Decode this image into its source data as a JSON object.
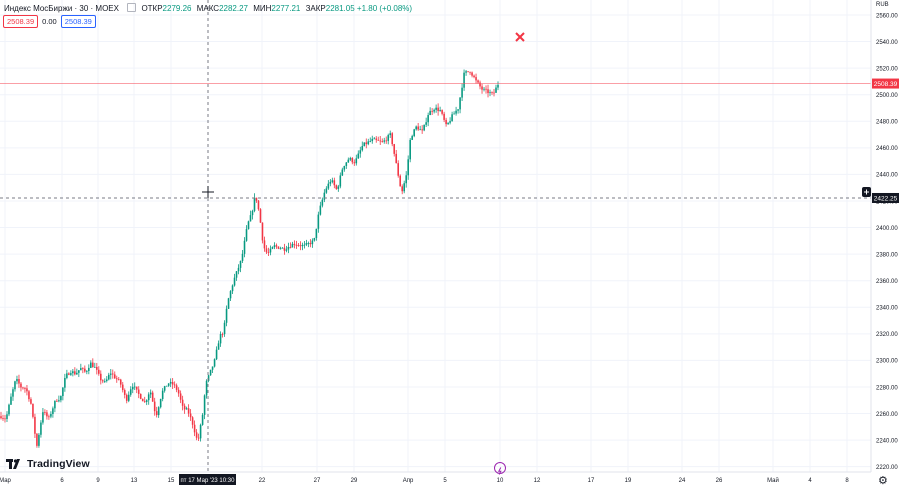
{
  "chart_data": {
    "type": "candlestick",
    "symbol_title": "Индекс МосБиржи · 30 · MOEX",
    "ohlc": {
      "open_label": "ОТКР",
      "open": "2279.26",
      "high_label": "МАКС",
      "high": "2282.27",
      "low_label": "МИН",
      "low": "2277.21",
      "close_label": "ЗАКР",
      "close": "2281.05",
      "change": "+1.80 (+0.08%)"
    },
    "sell_price": "2508.39",
    "spread": "0.00",
    "buy_price": "2508.39",
    "currency": "RUB",
    "y_axis": {
      "ticks": [
        "2560.00",
        "2540.00",
        "2520.00",
        "2500.00",
        "2480.00",
        "2460.00",
        "2440.00",
        "2420.00",
        "2400.00",
        "2380.00",
        "2360.00",
        "2340.00",
        "2320.00",
        "2300.00",
        "2280.00",
        "2260.00",
        "2240.00",
        "2220.00"
      ],
      "ylim": [
        2216,
        2563
      ]
    },
    "x_axis": {
      "ticks": [
        "Мар",
        "6",
        "9",
        "13",
        "15",
        "22",
        "27",
        "29",
        "Апр",
        "5",
        "10",
        "12",
        "17",
        "19",
        "24",
        "26",
        "Май",
        "4",
        "8"
      ]
    },
    "last_price_label": "2508.39",
    "crosshair": {
      "price_label": "2422.25",
      "time_label": "пт 17 Мар '23 10:30"
    },
    "path": [
      [
        0.0,
        2258
      ],
      [
        0.5,
        2256
      ],
      [
        1.0,
        2272
      ],
      [
        1.5,
        2286
      ],
      [
        2.0,
        2280
      ],
      [
        2.5,
        2279
      ],
      [
        3.0,
        2268
      ],
      [
        3.6,
        2235
      ],
      [
        4.2,
        2262
      ],
      [
        4.8,
        2256
      ],
      [
        5.5,
        2270
      ],
      [
        6.0,
        2272
      ],
      [
        6.5,
        2288
      ],
      [
        7.0,
        2292
      ],
      [
        7.5,
        2290
      ],
      [
        8.0,
        2294
      ],
      [
        8.5,
        2291
      ],
      [
        9.0,
        2298
      ],
      [
        9.5,
        2294
      ],
      [
        10.0,
        2286
      ],
      [
        10.5,
        2283
      ],
      [
        11.0,
        2291
      ],
      [
        12.0,
        2283
      ],
      [
        12.6,
        2270
      ],
      [
        13.2,
        2282
      ],
      [
        13.8,
        2275
      ],
      [
        14.5,
        2268
      ],
      [
        15.0,
        2278
      ],
      [
        15.6,
        2258
      ],
      [
        16.2,
        2276
      ],
      [
        16.8,
        2283
      ],
      [
        17.3,
        2282
      ],
      [
        17.8,
        2277
      ],
      [
        18.3,
        2264
      ],
      [
        18.8,
        2262
      ],
      [
        19.3,
        2252
      ],
      [
        19.8,
        2238
      ],
      [
        20.3,
        2260
      ],
      [
        20.6,
        2282
      ],
      [
        21.0,
        2290
      ],
      [
        21.5,
        2300
      ],
      [
        22.0,
        2318
      ],
      [
        22.4,
        2322
      ],
      [
        22.8,
        2344
      ],
      [
        23.4,
        2360
      ],
      [
        24.2,
        2376
      ],
      [
        24.8,
        2402
      ],
      [
        25.2,
        2410
      ],
      [
        25.6,
        2425
      ],
      [
        26.0,
        2410
      ],
      [
        26.4,
        2386
      ],
      [
        26.8,
        2380
      ],
      [
        27.5,
        2386
      ],
      [
        28.5,
        2384
      ],
      [
        29.5,
        2388
      ],
      [
        30.5,
        2386
      ],
      [
        31.5,
        2390
      ],
      [
        32.0,
        2412
      ],
      [
        32.6,
        2428
      ],
      [
        33.2,
        2436
      ],
      [
        33.8,
        2428
      ],
      [
        34.4,
        2446
      ],
      [
        35.0,
        2452
      ],
      [
        35.6,
        2449
      ],
      [
        36.4,
        2462
      ],
      [
        37.4,
        2466
      ],
      [
        38.4,
        2464
      ],
      [
        39.2,
        2470
      ],
      [
        39.8,
        2446
      ],
      [
        40.3,
        2426
      ],
      [
        40.8,
        2440
      ],
      [
        41.2,
        2468
      ],
      [
        41.8,
        2476
      ],
      [
        42.4,
        2472
      ],
      [
        43.0,
        2486
      ],
      [
        43.6,
        2490
      ],
      [
        44.2,
        2488
      ],
      [
        44.8,
        2476
      ],
      [
        45.4,
        2484
      ],
      [
        46.0,
        2490
      ],
      [
        46.6,
        2516
      ],
      [
        47.2,
        2518
      ],
      [
        47.8,
        2510
      ],
      [
        48.4,
        2504
      ],
      [
        49.0,
        2502
      ],
      [
        49.5,
        2500
      ],
      [
        50.0,
        2508
      ]
    ]
  }
}
